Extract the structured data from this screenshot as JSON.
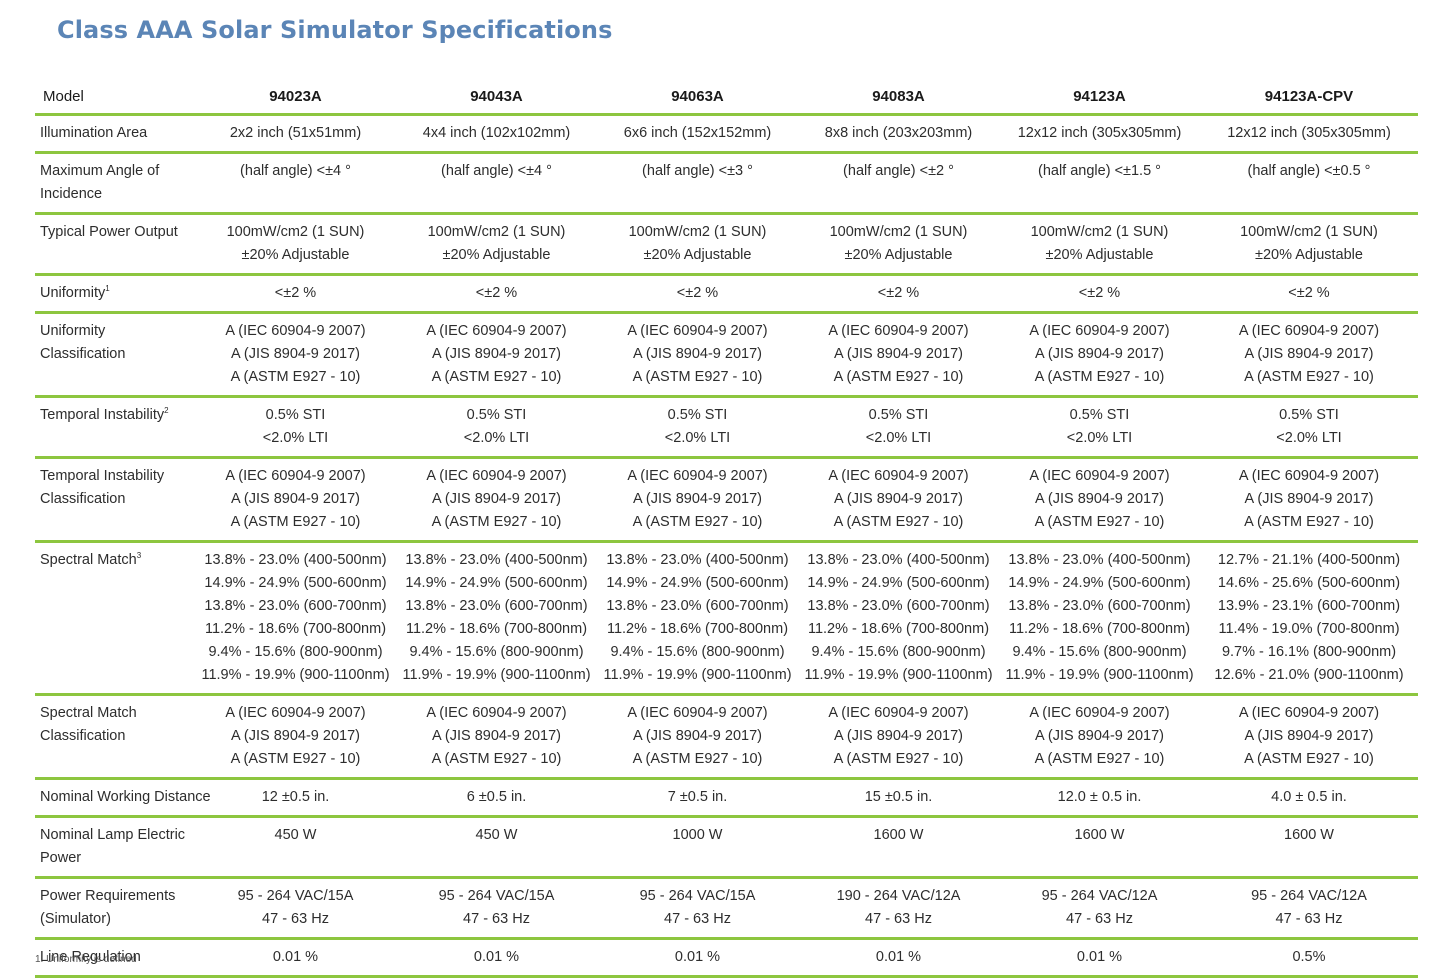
{
  "title": "Class AAA Solar Simulator Specifications",
  "header": {
    "label": "Model",
    "models": [
      "94023A",
      "94043A",
      "94063A",
      "94083A",
      "94123A",
      "94123A-CPV"
    ]
  },
  "rows": [
    {
      "label": [
        "Illumination Area"
      ],
      "sup": "",
      "cells": [
        [
          "2x2 inch (51x51mm)"
        ],
        [
          "4x4 inch (102x102mm)"
        ],
        [
          "6x6 inch (152x152mm)"
        ],
        [
          "8x8 inch (203x203mm)"
        ],
        [
          "12x12 inch (305x305mm)"
        ],
        [
          "12x12 inch (305x305mm)"
        ]
      ]
    },
    {
      "label": [
        "Maximum Angle of",
        "Incidence"
      ],
      "sup": "",
      "cells": [
        [
          "(half angle) <±4 °"
        ],
        [
          "(half angle) <±4 °"
        ],
        [
          "(half angle) <±3 °"
        ],
        [
          "(half angle) <±2 °"
        ],
        [
          "(half angle) <±1.5 °"
        ],
        [
          "(half angle) <±0.5 °"
        ]
      ]
    },
    {
      "label": [
        "Typical Power Output"
      ],
      "sup": "",
      "cells": [
        [
          "100mW/cm2 (1 SUN)",
          "±20% Adjustable"
        ],
        [
          "100mW/cm2 (1 SUN)",
          "±20% Adjustable"
        ],
        [
          "100mW/cm2 (1 SUN)",
          "±20% Adjustable"
        ],
        [
          "100mW/cm2 (1 SUN)",
          "±20% Adjustable"
        ],
        [
          "100mW/cm2 (1 SUN)",
          "±20% Adjustable"
        ],
        [
          "100mW/cm2 (1 SUN)",
          "±20% Adjustable"
        ]
      ]
    },
    {
      "label": [
        "Uniformity"
      ],
      "sup": "1",
      "cells": [
        [
          "<±2 %"
        ],
        [
          "<±2 %"
        ],
        [
          "<±2 %"
        ],
        [
          "<±2 %"
        ],
        [
          "<±2 %"
        ],
        [
          "<±2 %"
        ]
      ]
    },
    {
      "label": [
        "Uniformity",
        "Classification"
      ],
      "sup": "",
      "cells": [
        [
          "A  (IEC 60904-9 2007)",
          "A  (JIS 8904-9 2017)",
          "A  (ASTM E927 - 10)"
        ],
        [
          "A  (IEC 60904-9 2007)",
          "A  (JIS 8904-9 2017)",
          "A  (ASTM E927 - 10)"
        ],
        [
          "A  (IEC 60904-9 2007)",
          "A  (JIS 8904-9 2017)",
          "A  (ASTM E927 - 10)"
        ],
        [
          "A  (IEC 60904-9 2007)",
          "A  (JIS 8904-9 2017)",
          "A  (ASTM E927 - 10)"
        ],
        [
          "A  (IEC 60904-9 2007)",
          "A  (JIS 8904-9 2017)",
          "A  (ASTM E927 - 10)"
        ],
        [
          "A  (IEC 60904-9 2007)",
          "A  (JIS 8904-9 2017)",
          "A  (ASTM E927 - 10)"
        ]
      ]
    },
    {
      "label": [
        "Temporal Instability"
      ],
      "sup": "2",
      "cells": [
        [
          "0.5% STI",
          "<2.0% LTI"
        ],
        [
          "0.5% STI",
          "<2.0% LTI"
        ],
        [
          "0.5% STI",
          "<2.0% LTI"
        ],
        [
          "0.5% STI",
          "<2.0% LTI"
        ],
        [
          "0.5% STI",
          "<2.0% LTI"
        ],
        [
          "0.5% STI",
          "<2.0% LTI"
        ]
      ]
    },
    {
      "label": [
        "Temporal Instability",
        "Classification"
      ],
      "sup": "",
      "cells": [
        [
          "A  (IEC 60904-9 2007)",
          "A  (JIS 8904-9 2017)",
          "A  (ASTM E927 - 10)"
        ],
        [
          "A  (IEC 60904-9 2007)",
          "A  (JIS 8904-9 2017)",
          "A  (ASTM E927 - 10)"
        ],
        [
          "A  (IEC 60904-9 2007)",
          "A  (JIS 8904-9 2017)",
          "A  (ASTM E927 - 10)"
        ],
        [
          "A  (IEC 60904-9 2007)",
          "A  (JIS 8904-9 2017)",
          "A  (ASTM E927 - 10)"
        ],
        [
          "A  (IEC 60904-9 2007)",
          "A  (JIS 8904-9 2017)",
          "A  (ASTM E927 - 10)"
        ],
        [
          "A  (IEC 60904-9 2007)",
          "A  (JIS 8904-9 2017)",
          "A  (ASTM E927 - 10)"
        ]
      ]
    },
    {
      "label": [
        "Spectral Match"
      ],
      "sup": "3",
      "cells": [
        [
          "13.8% - 23.0% (400-500nm)",
          "14.9% - 24.9% (500-600nm)",
          "13.8% - 23.0% (600-700nm)",
          "11.2% - 18.6% (700-800nm)",
          "9.4% - 15.6% (800-900nm)",
          "11.9% - 19.9% (900-1100nm)"
        ],
        [
          "13.8% - 23.0% (400-500nm)",
          "14.9% - 24.9% (500-600nm)",
          "13.8% - 23.0% (600-700nm)",
          "11.2% - 18.6% (700-800nm)",
          "9.4% - 15.6% (800-900nm)",
          "11.9% - 19.9% (900-1100nm)"
        ],
        [
          "13.8% - 23.0% (400-500nm)",
          "14.9% - 24.9% (500-600nm)",
          "13.8% - 23.0% (600-700nm)",
          "11.2% - 18.6% (700-800nm)",
          "9.4% - 15.6% (800-900nm)",
          "11.9% - 19.9% (900-1100nm)"
        ],
        [
          "13.8% - 23.0% (400-500nm)",
          "14.9% - 24.9% (500-600nm)",
          "13.8% - 23.0% (600-700nm)",
          "11.2% - 18.6% (700-800nm)",
          "9.4% - 15.6% (800-900nm)",
          "11.9% - 19.9% (900-1100nm)"
        ],
        [
          "13.8% - 23.0% (400-500nm)",
          "14.9% - 24.9% (500-600nm)",
          "13.8% - 23.0% (600-700nm)",
          "11.2% - 18.6% (700-800nm)",
          "9.4% - 15.6% (800-900nm)",
          "11.9% - 19.9% (900-1100nm)"
        ],
        [
          "12.7% - 21.1% (400-500nm)",
          "14.6% - 25.6% (500-600nm)",
          "13.9% - 23.1% (600-700nm)",
          "11.4% - 19.0% (700-800nm)",
          "9.7% - 16.1% (800-900nm)",
          "12.6% - 21.0% (900-1100nm)"
        ]
      ]
    },
    {
      "label": [
        "Spectral Match",
        "Classification"
      ],
      "sup": "",
      "cells": [
        [
          "A  (IEC 60904-9 2007)",
          "A  (JIS 8904-9 2017)",
          "A  (ASTM E927 - 10)"
        ],
        [
          "A  (IEC 60904-9 2007)",
          "A  (JIS 8904-9 2017)",
          "A  (ASTM E927 - 10)"
        ],
        [
          "A  (IEC 60904-9 2007)",
          "A  (JIS 8904-9 2017)",
          "A  (ASTM E927 - 10)"
        ],
        [
          "A  (IEC 60904-9 2007)",
          "A  (JIS 8904-9 2017)",
          "A  (ASTM E927 - 10)"
        ],
        [
          "A  (IEC 60904-9 2007)",
          "A  (JIS 8904-9 2017)",
          "A  (ASTM E927 - 10)"
        ],
        [
          "A  (IEC 60904-9 2007)",
          "A  (JIS 8904-9 2017)",
          "A  (ASTM E927 - 10)"
        ]
      ]
    },
    {
      "label": [
        "Nominal Working Distance"
      ],
      "sup": "",
      "cells": [
        [
          "12 ±0.5 in."
        ],
        [
          "6 ±0.5 in."
        ],
        [
          "7 ±0.5 in."
        ],
        [
          "15 ±0.5 in."
        ],
        [
          "12.0 ± 0.5 in."
        ],
        [
          "4.0 ± 0.5 in."
        ]
      ]
    },
    {
      "label": [
        "Nominal Lamp Electric",
        "Power"
      ],
      "sup": "",
      "cells": [
        [
          "450 W"
        ],
        [
          "450 W"
        ],
        [
          "1000 W"
        ],
        [
          "1600 W"
        ],
        [
          "1600 W"
        ],
        [
          "1600 W"
        ]
      ]
    },
    {
      "label": [
        "Power Requirements",
        "(Simulator)"
      ],
      "sup": "",
      "cells": [
        [
          "95 - 264 VAC/15A",
          "47 - 63 Hz"
        ],
        [
          "95 - 264 VAC/15A",
          "47 - 63 Hz"
        ],
        [
          "95 - 264 VAC/15A",
          "47 - 63 Hz"
        ],
        [
          "190 - 264 VAC/12A",
          "47 - 63 Hz"
        ],
        [
          "95 - 264 VAC/12A",
          "47 - 63 Hz"
        ],
        [
          "95 - 264 VAC/12A",
          "47 - 63 Hz"
        ]
      ]
    },
    {
      "label": [
        "Line Regulation"
      ],
      "sup": "",
      "cells": [
        [
          "0.01 %"
        ],
        [
          "0.01 %"
        ],
        [
          "0.01 %"
        ],
        [
          "0.01 %"
        ],
        [
          "0.01 %"
        ],
        [
          "0.5%"
        ]
      ]
    }
  ],
  "footnote": "1.   Uniformity is defined"
}
